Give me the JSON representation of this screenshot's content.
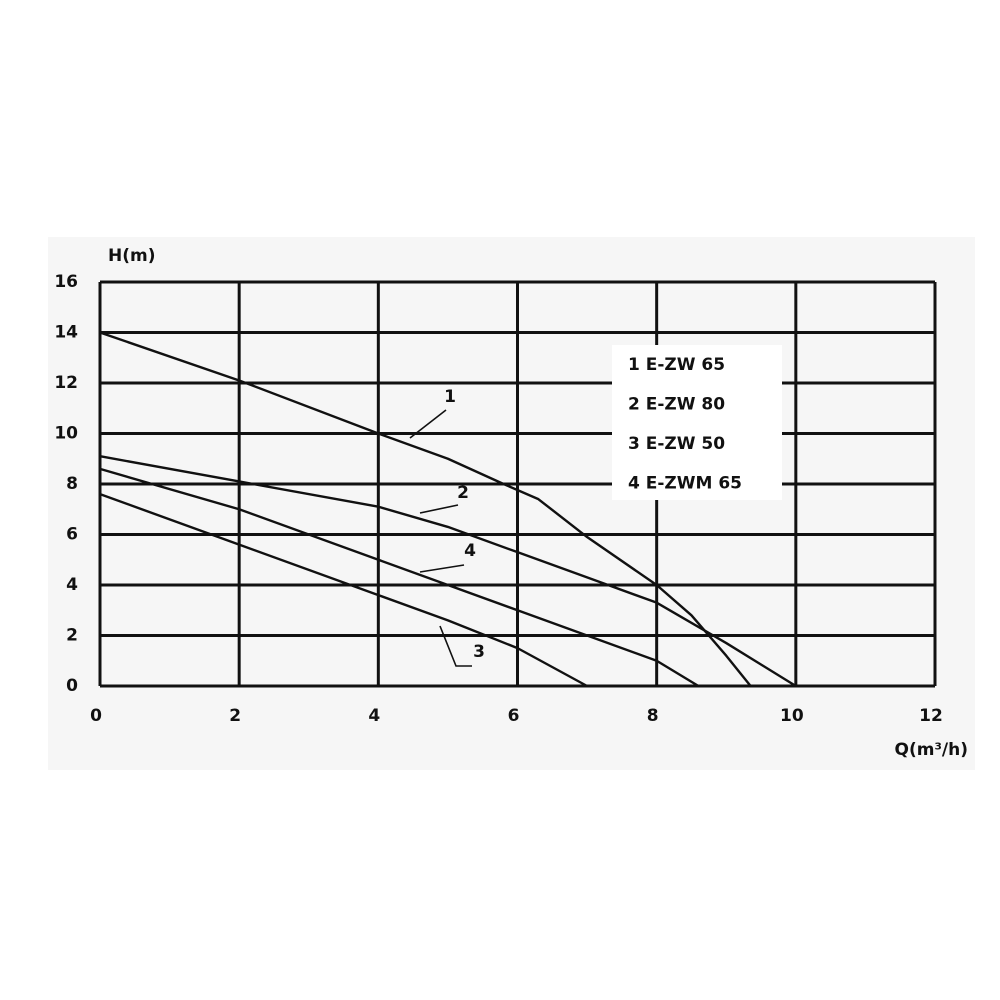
{
  "chart_data": {
    "type": "line",
    "y_label": "H(m)",
    "x_label": "Q(m³/h)",
    "xlim": [
      0,
      12
    ],
    "ylim": [
      0,
      16
    ],
    "xticks": [
      0,
      2,
      4,
      6,
      8,
      10,
      12
    ],
    "yticks": [
      0,
      2,
      4,
      6,
      8,
      10,
      12,
      14,
      16
    ],
    "grid": true,
    "legend": "upper right",
    "annotations": [
      "1",
      "2",
      "4",
      "3"
    ],
    "series": [
      {
        "name": "1  E-ZW 65",
        "color": "#111111",
        "x": [
          0,
          2,
          4,
          5,
          5.8,
          6.3,
          7,
          8,
          8.5,
          9,
          9.35
        ],
        "values": [
          14,
          12.1,
          10,
          9,
          8,
          7.4,
          5.9,
          4,
          2.8,
          1.2,
          0
        ]
      },
      {
        "name": "2  E-ZW 80",
        "color": "#111111",
        "x": [
          0,
          2,
          4,
          5,
          6,
          7,
          8,
          9,
          10
        ],
        "values": [
          9.1,
          8.1,
          7.1,
          6.3,
          5.3,
          4.3,
          3.3,
          1.7,
          0
        ]
      },
      {
        "name": "3  E-ZW 50",
        "color": "#111111",
        "x": [
          0,
          2,
          4,
          5,
          6,
          7
        ],
        "values": [
          7.6,
          5.6,
          3.6,
          2.6,
          1.5,
          0
        ]
      },
      {
        "name": "4  E-ZWM 65",
        "color": "#111111",
        "x": [
          0,
          2,
          4,
          6,
          7,
          8,
          8.6
        ],
        "values": [
          8.6,
          7,
          5,
          3,
          2,
          1,
          0
        ]
      }
    ]
  }
}
